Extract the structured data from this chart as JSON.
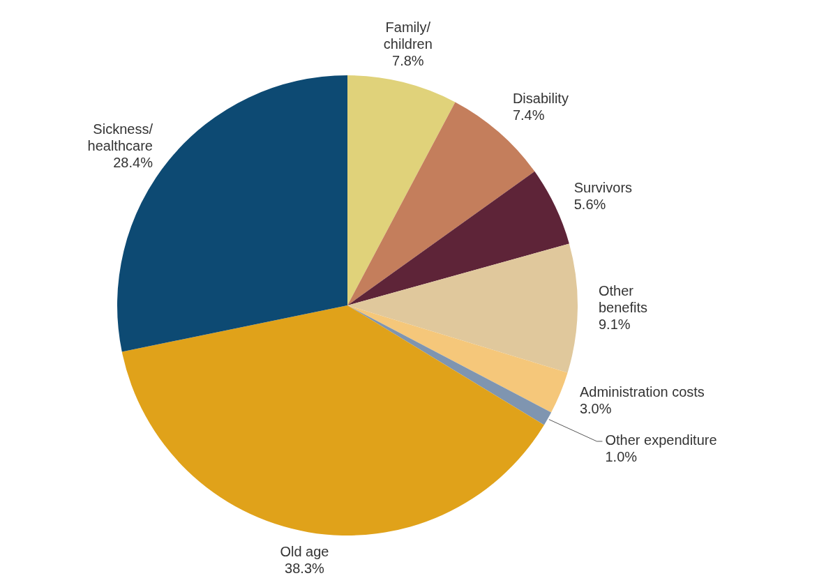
{
  "chart_data": {
    "type": "pie",
    "categories": [
      "Family/children",
      "Disability",
      "Survivors",
      "Other benefits",
      "Administration costs",
      "Other expenditure",
      "Old age",
      "Sickness/healthcare"
    ],
    "values": [
      7.8,
      7.4,
      5.6,
      9.1,
      3.0,
      1.0,
      38.3,
      28.4
    ],
    "colors": [
      "#e0d27a",
      "#c47e5c",
      "#5e2438",
      "#e0c89c",
      "#f5c77a",
      "#7f95b0",
      "#e0a21a",
      "#0d4a73"
    ],
    "value_labels": [
      "7.8%",
      "7.4%",
      "5.6%",
      "9.1%",
      "3.0%",
      "1.0%",
      "38.3%",
      "28.4%"
    ],
    "legend": false
  }
}
